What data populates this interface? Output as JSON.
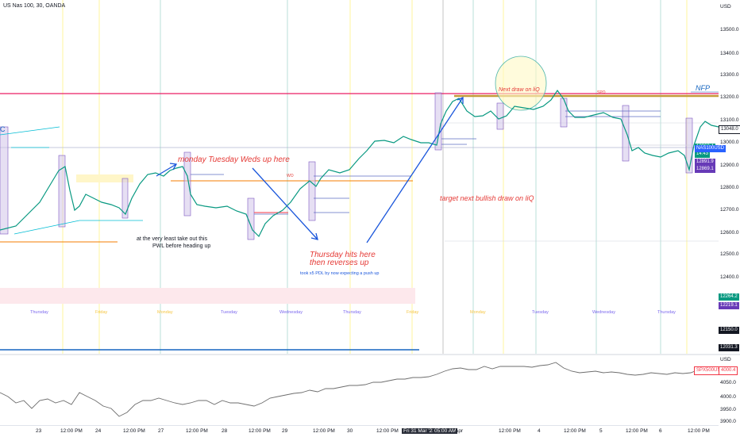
{
  "header": {
    "title": "US Nas 100, 30, OANDA"
  },
  "price_axis": {
    "unit": "USD",
    "ticks": [
      "13500.0",
      "13400.0",
      "13300.0",
      "13200.0",
      "13100.0",
      "13000.0",
      "12900.0",
      "12800.0",
      "12700.0",
      "12600.0",
      "12500.0",
      "12400.0",
      "12300.0"
    ],
    "boxes": [
      {
        "text": "13048.0",
        "color": "#ffffff",
        "fg": "#131722",
        "border": "#131722"
      },
      {
        "text": "12963.4",
        "color": "#089981",
        "fg": "#ffffff"
      },
      {
        "text": "14:43",
        "color": "#089981",
        "fg": "#ffffff"
      },
      {
        "text": "NAS100USD",
        "color": "#2962ff",
        "fg": "#ffffff"
      },
      {
        "text": "12891.9",
        "color": "#673ab7",
        "fg": "#ffffff"
      },
      {
        "text": "12869.1",
        "color": "#673ab7",
        "fg": "#ffffff"
      },
      {
        "text": "12264.2",
        "color": "#089981",
        "fg": "#ffffff"
      },
      {
        "text": "12219.1",
        "color": "#673ab7",
        "fg": "#ffffff"
      },
      {
        "text": "12150.0",
        "color": "#131722",
        "fg": "#ffffff"
      },
      {
        "text": "12031.3",
        "color": "#131722",
        "fg": "#ffffff"
      }
    ]
  },
  "sub_axis": {
    "unit": "USD",
    "ticks": [
      "4050.0",
      "4000.0",
      "3950.0",
      "3900.0"
    ],
    "boxes": [
      {
        "text": "SPX500USD",
        "color": "#ffffff",
        "fg": "#f23645"
      },
      {
        "text": "4000.4",
        "color": "#ffffff",
        "fg": "#f23645"
      }
    ]
  },
  "time_axis": [
    "23",
    "12:00 PM",
    "24",
    "12:00 PM",
    "27",
    "12:00 PM",
    "28",
    "12:00 PM",
    "29",
    "12:00 PM",
    "30",
    "12:00 PM",
    "Fri 31 Mar '23",
    "05:00 AM",
    "Apr",
    "12:00 PM",
    "4",
    "12:00 PM",
    "5",
    "12:00 PM",
    "6",
    "12:00 PM"
  ],
  "day_labels": [
    {
      "text": "Thursday",
      "color": "#7b68ee"
    },
    {
      "text": "Friday",
      "color": "#f5c542"
    },
    {
      "text": "Monday",
      "color": "#f5c542"
    },
    {
      "text": "Tuesday",
      "color": "#7b68ee"
    },
    {
      "text": "Wednesday",
      "color": "#7b68ee"
    },
    {
      "text": "Thursday",
      "color": "#7b68ee"
    },
    {
      "text": "Friday",
      "color": "#f5c542"
    },
    {
      "text": "Monday",
      "color": "#f5c542"
    },
    {
      "text": "Tuesday",
      "color": "#7b68ee"
    },
    {
      "text": "Wednesday",
      "color": "#7b68ee"
    },
    {
      "text": "Thursday",
      "color": "#7b68ee"
    }
  ],
  "annotations": {
    "monday_note": "monday Tuesday Weds up here",
    "pwl_note_1": "at the very least take out this",
    "pwl_note_2": "PWL before heading up",
    "thursday_note_1": "Thursday hits here",
    "thursday_note_2": "then reverses up",
    "pdl_note": "took x5 PDL by now expecting a push up",
    "target_note": "target next bullish draw on liQ",
    "next_draw": "Next draw on liQ",
    "nfp": "NFP",
    "wo": "WO",
    "spo": "SPO",
    "c_mark": "C"
  },
  "colors": {
    "annotation_red": "#e53935",
    "annotation_blue": "#1a56db",
    "up": "#089981",
    "down": "#f23645",
    "sub_chart": "#8a8f98",
    "vline_day": "#a7d7cf",
    "vline_yellow": "#fff59d"
  }
}
